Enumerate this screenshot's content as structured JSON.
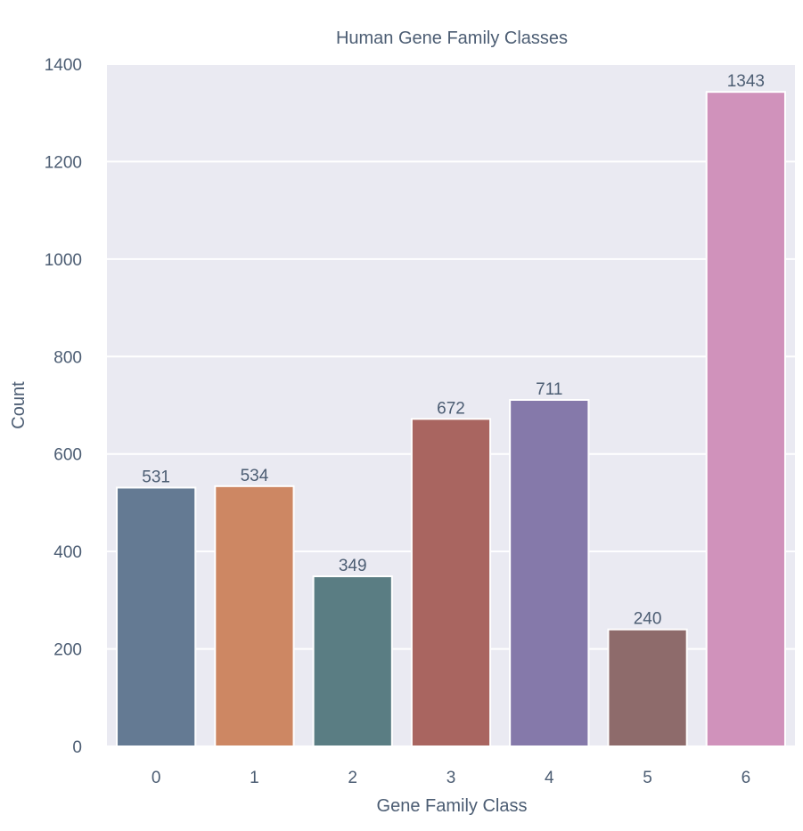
{
  "chart_data": {
    "type": "bar",
    "title": "Human Gene Family Classes",
    "xlabel": "Gene Family Class",
    "ylabel": "Count",
    "categories": [
      "0",
      "1",
      "2",
      "3",
      "4",
      "5",
      "6"
    ],
    "values": [
      531,
      534,
      349,
      672,
      711,
      240,
      1343
    ],
    "value_labels": [
      "531",
      "534",
      "349",
      "672",
      "711",
      "240",
      "1343"
    ],
    "ylim": [
      0,
      1400
    ],
    "yticks": [
      0,
      200,
      400,
      600,
      800,
      1000,
      1200,
      1400
    ],
    "ytick_labels": [
      "0",
      "200",
      "400",
      "600",
      "800",
      "1000",
      "1200",
      "1400"
    ],
    "grid": true,
    "colors": {
      "background": "#eaeaf2",
      "grid": "#ffffff",
      "text": "#4c5d73",
      "bars": [
        "#647a93",
        "#cd8763",
        "#5a7d83",
        "#a96560",
        "#8579aa",
        "#8e6b6b",
        "#d092bb"
      ]
    }
  }
}
